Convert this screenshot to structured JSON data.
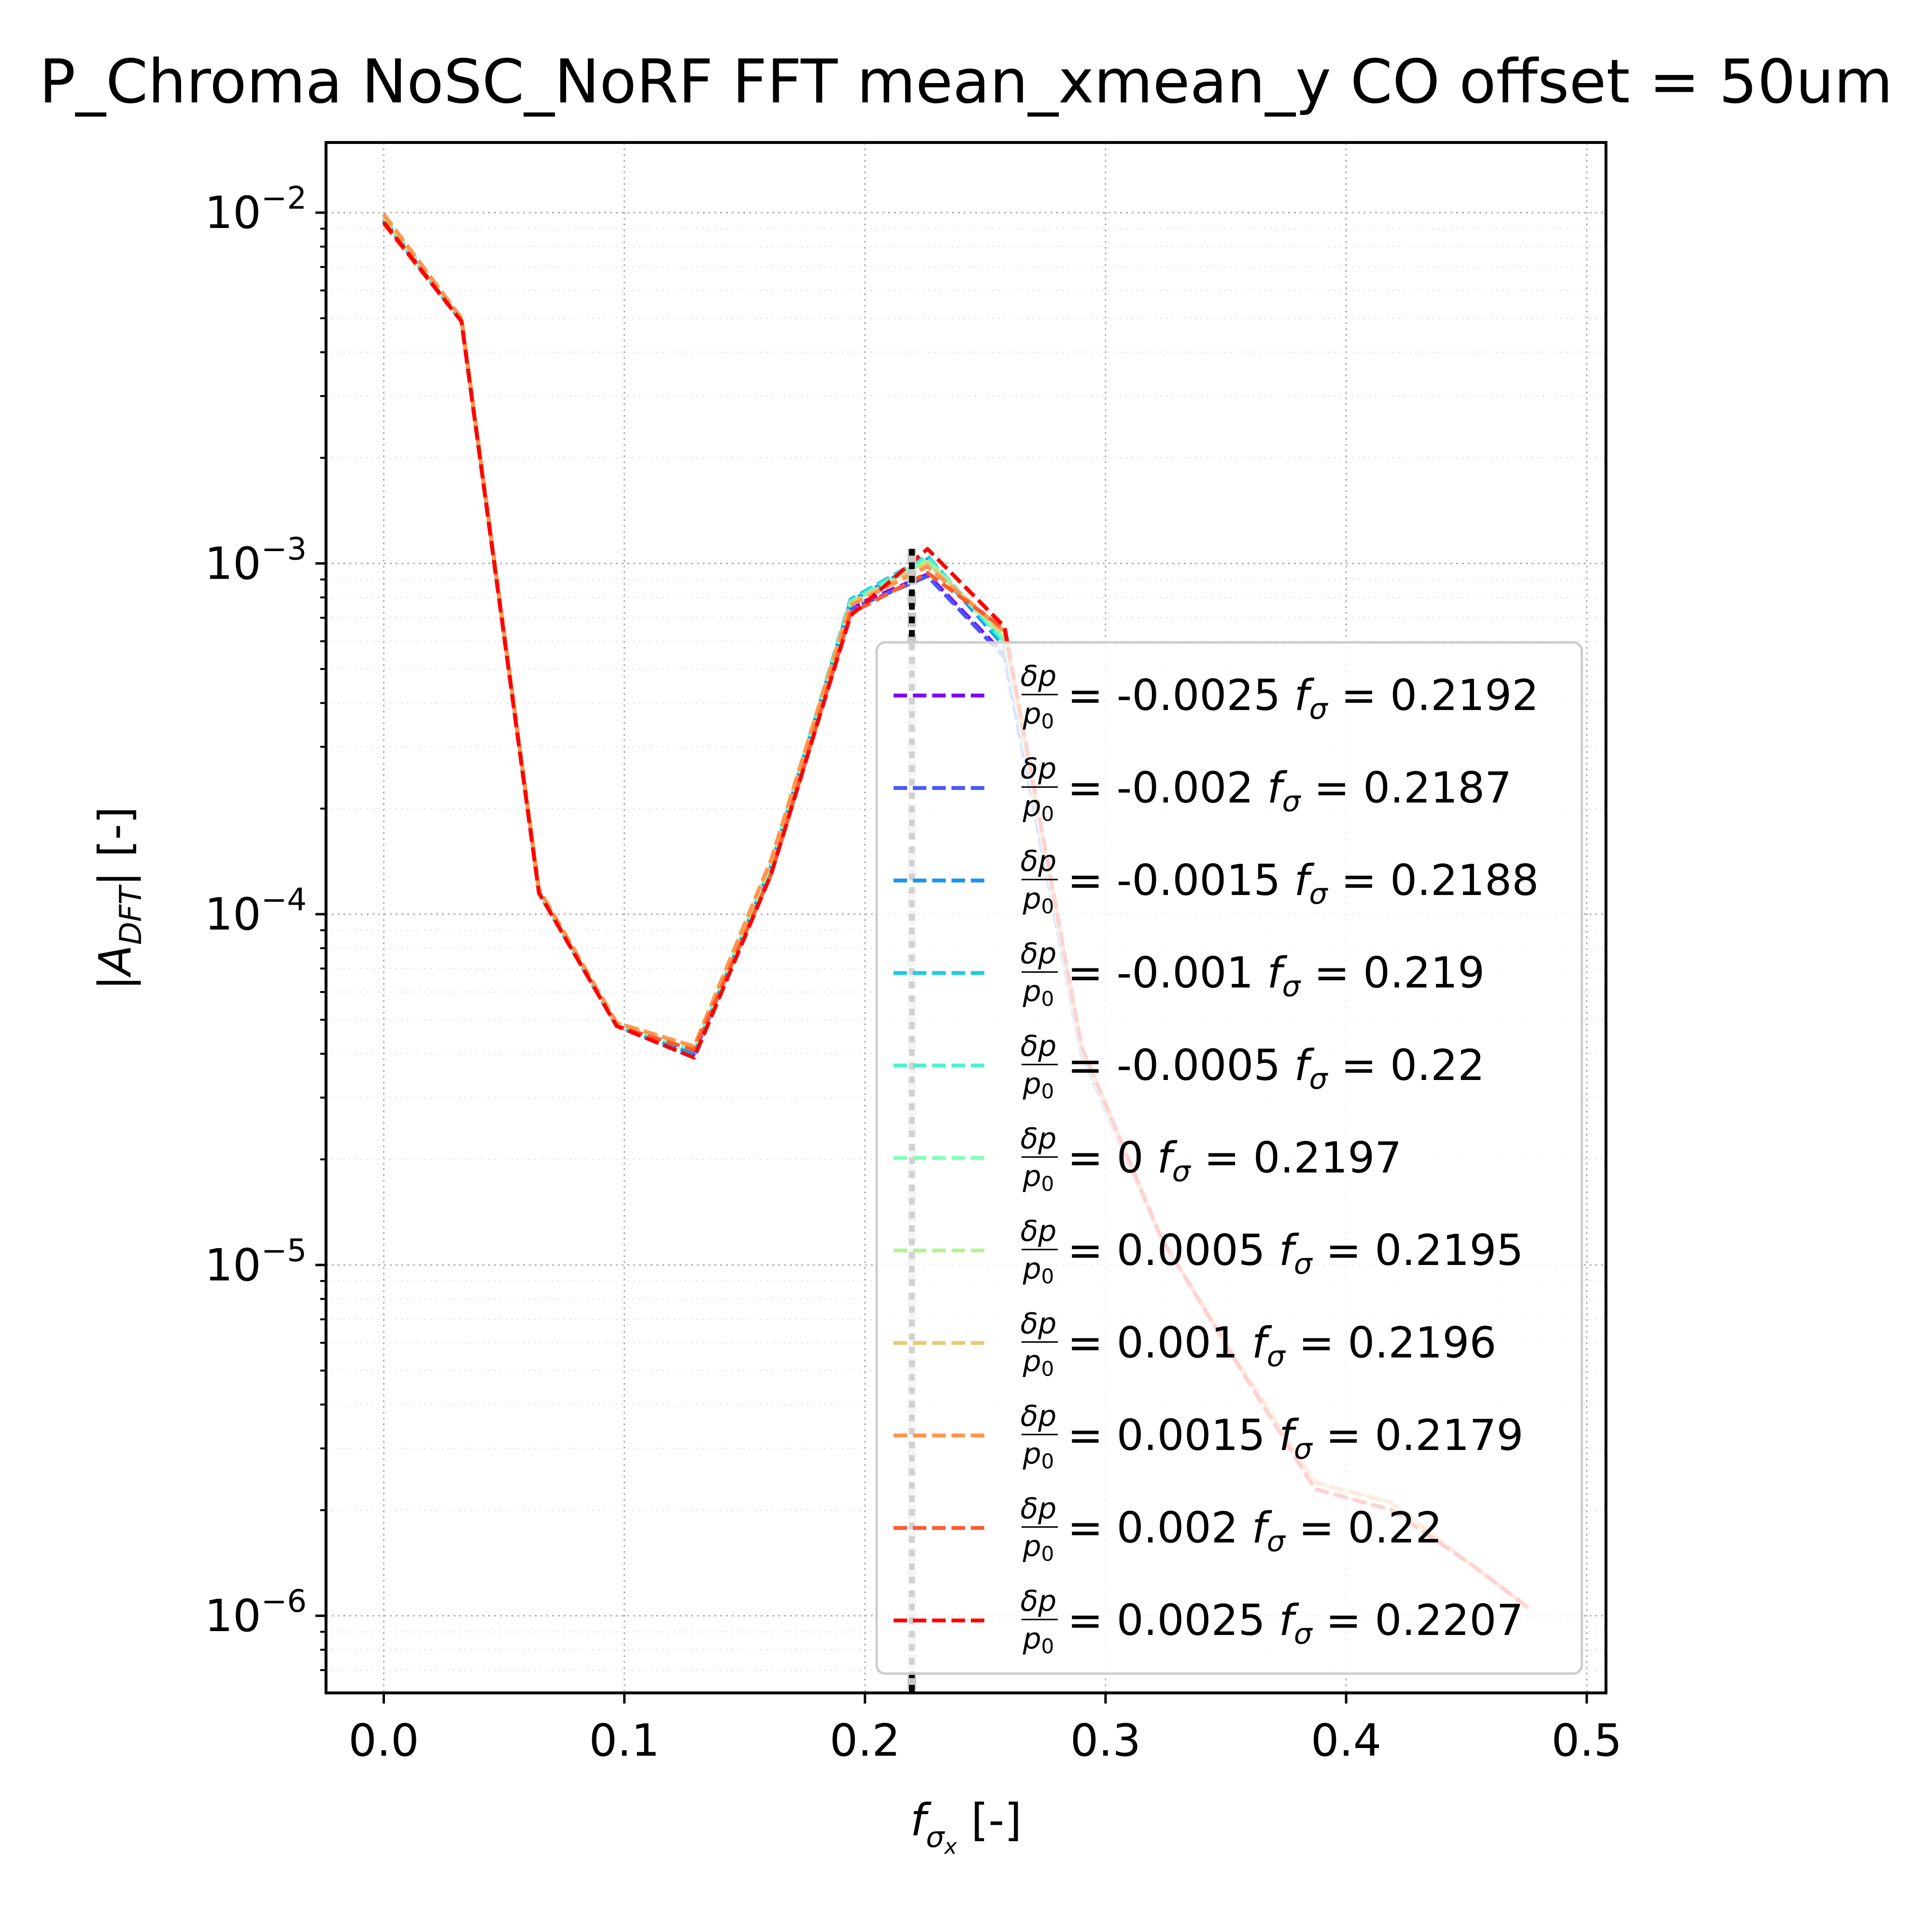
{
  "chart_data": {
    "type": "line",
    "title": "P_Chroma NoSC_NoRF FFT mean_xmean_y CO offset = 50um",
    "xlabel": "f_σx [-]",
    "ylabel": "|A_DFT| [-]",
    "xlim": [
      -0.024,
      0.508
    ],
    "ylim_log10": [
      -6.22,
      -1.8
    ],
    "y_scale": "log",
    "grid": true,
    "legend_position": "lower right",
    "x_ticks": [
      "0.0",
      "0.1",
      "0.2",
      "0.3",
      "0.4",
      "0.5"
    ],
    "x_tick_values": [
      0.0,
      0.1,
      0.2,
      0.3,
      0.4,
      0.5
    ],
    "y_ticks": [
      {
        "base": "10",
        "exp": "−2",
        "value": 0.01
      },
      {
        "base": "10",
        "exp": "−3",
        "value": 0.001
      },
      {
        "base": "10",
        "exp": "−4",
        "value": 0.0001
      },
      {
        "base": "10",
        "exp": "−5",
        "value": 1e-05
      },
      {
        "base": "10",
        "exp": "−6",
        "value": 1e-06
      }
    ],
    "x": [
      0.0,
      0.0323,
      0.0645,
      0.0968,
      0.129,
      0.161,
      0.194,
      0.226,
      0.258,
      0.29,
      0.323,
      0.355,
      0.387,
      0.419,
      0.452,
      0.476
    ],
    "series": [
      {
        "name": "δp/p0 = -0.0025 f_σ = 0.2192",
        "dp": "-0.0025",
        "f": "0.2192",
        "color": "#8000ff",
        "values": [
          0.0095,
          0.0049,
          0.000115,
          4.8e-05,
          4e-05,
          0.000135,
          0.00075,
          0.00093,
          0.00055,
          4e-05,
          1.2e-05,
          5.2e-06,
          2.4e-06,
          2.1e-06,
          1.4e-06,
          1.05e-06
        ]
      },
      {
        "name": "δp/p0 = -0.002 f_σ = 0.2187",
        "dp": "-0.002",
        "f": "0.2187",
        "color": "#4856fb",
        "values": [
          0.0095,
          0.0049,
          0.000115,
          4.8e-05,
          3.9e-05,
          0.000135,
          0.00074,
          0.00092,
          0.00054,
          4e-05,
          1.2e-05,
          5.2e-06,
          2.4e-06,
          2.1e-06,
          1.4e-06,
          1.05e-06
        ]
      },
      {
        "name": "δp/p0 = -0.0015 f_σ = 0.2188",
        "dp": "-0.0015",
        "f": "0.2188",
        "color": "#1996f3",
        "values": [
          0.0096,
          0.0049,
          0.000116,
          4.8e-05,
          4e-05,
          0.000137,
          0.00078,
          0.00103,
          0.00058,
          4.1e-05,
          1.2e-05,
          5.3e-06,
          2.4e-06,
          2.1e-06,
          1.4e-06,
          1.05e-06
        ]
      },
      {
        "name": "δp/p0 = -0.001 f_σ = 0.219",
        "dp": "-0.001",
        "f": "0.219",
        "color": "#1ccbe6",
        "values": [
          0.0096,
          0.0049,
          0.000116,
          4.8e-05,
          4.1e-05,
          0.000138,
          0.00079,
          0.00105,
          0.00059,
          4.1e-05,
          1.2e-05,
          5.3e-06,
          2.4e-06,
          2.1e-06,
          1.4e-06,
          1.05e-06
        ]
      },
      {
        "name": "δp/p0 = -0.0005 f_σ = 0.22",
        "dp": "-0.0005",
        "f": "0.22",
        "color": "#4df3ce",
        "values": [
          0.0097,
          0.005,
          0.000117,
          4.9e-05,
          4.1e-05,
          0.000139,
          0.00078,
          0.00104,
          0.0006,
          4.1e-05,
          1.2e-05,
          5.3e-06,
          2.4e-06,
          2.1e-06,
          1.4e-06,
          1.05e-06
        ]
      },
      {
        "name": "δp/p0 = 0 f_σ = 0.2197",
        "dp": "0",
        "f": "0.2197",
        "color": "#80ffb4",
        "values": [
          0.0097,
          0.005,
          0.000117,
          4.9e-05,
          4.1e-05,
          0.00014,
          0.00077,
          0.00102,
          0.00061,
          4.1e-05,
          1.2e-05,
          5.3e-06,
          2.4e-06,
          2.1e-06,
          1.4e-06,
          1.05e-06
        ]
      },
      {
        "name": "δp/p0 = 0.0005 f_σ = 0.2195",
        "dp": "0.0005",
        "f": "0.2195",
        "color": "#b2f396",
        "values": [
          0.0098,
          0.005,
          0.000118,
          4.9e-05,
          4.2e-05,
          0.000141,
          0.00077,
          0.00101,
          0.00062,
          4.2e-05,
          1.2e-05,
          5.3e-06,
          2.4e-06,
          2.1e-06,
          1.4e-06,
          1.05e-06
        ]
      },
      {
        "name": "δp/p0 = 0.001 f_σ = 0.2196",
        "dp": "0.001",
        "f": "0.2196",
        "color": "#e6cb73",
        "values": [
          0.0098,
          0.005,
          0.000118,
          4.9e-05,
          4.2e-05,
          0.000142,
          0.00077,
          0.001,
          0.00063,
          4.2e-05,
          1.2e-05,
          5.3e-06,
          2.4e-06,
          2.1e-06,
          1.4e-06,
          1.05e-06
        ]
      },
      {
        "name": "δp/p0 = 0.0015 f_σ = 0.2179",
        "dp": "0.0015",
        "f": "0.2179",
        "color": "#ff964f",
        "values": [
          0.0099,
          0.005,
          0.000118,
          4.9e-05,
          4.2e-05,
          0.000143,
          0.00076,
          0.00098,
          0.00064,
          4.2e-05,
          1.2e-05,
          5.3e-06,
          2.4e-06,
          2.1e-06,
          1.4e-06,
          1.05e-06
        ]
      },
      {
        "name": "δp/p0 = 0.002 f_σ = 0.22",
        "dp": "0.002",
        "f": "0.22",
        "color": "#ff5a2e",
        "values": [
          0.0093,
          0.0049,
          0.000115,
          4.8e-05,
          4.1e-05,
          0.00013,
          0.00072,
          0.00094,
          0.00065,
          4.2e-05,
          1.2e-05,
          5.2e-06,
          2.3e-06,
          2e-06,
          1.4e-06,
          1.05e-06
        ]
      },
      {
        "name": "δp/p0 = 0.0025 f_σ = 0.2207",
        "dp": "0.0025",
        "f": "0.2207",
        "color": "#ff0000",
        "values": [
          0.0094,
          0.0049,
          0.000115,
          4.8e-05,
          3.9e-05,
          0.00013,
          0.00071,
          0.0011,
          0.00066,
          4.2e-05,
          1.2e-05,
          5.2e-06,
          2.3e-06,
          2e-06,
          1.4e-06,
          1.05e-06
        ]
      }
    ],
    "vlines": [
      {
        "x": 0.2195,
        "color": "#c8c8c8",
        "style": "dashed"
      },
      {
        "x": 0.2195,
        "color": "#000000",
        "style": "dotted"
      }
    ]
  }
}
